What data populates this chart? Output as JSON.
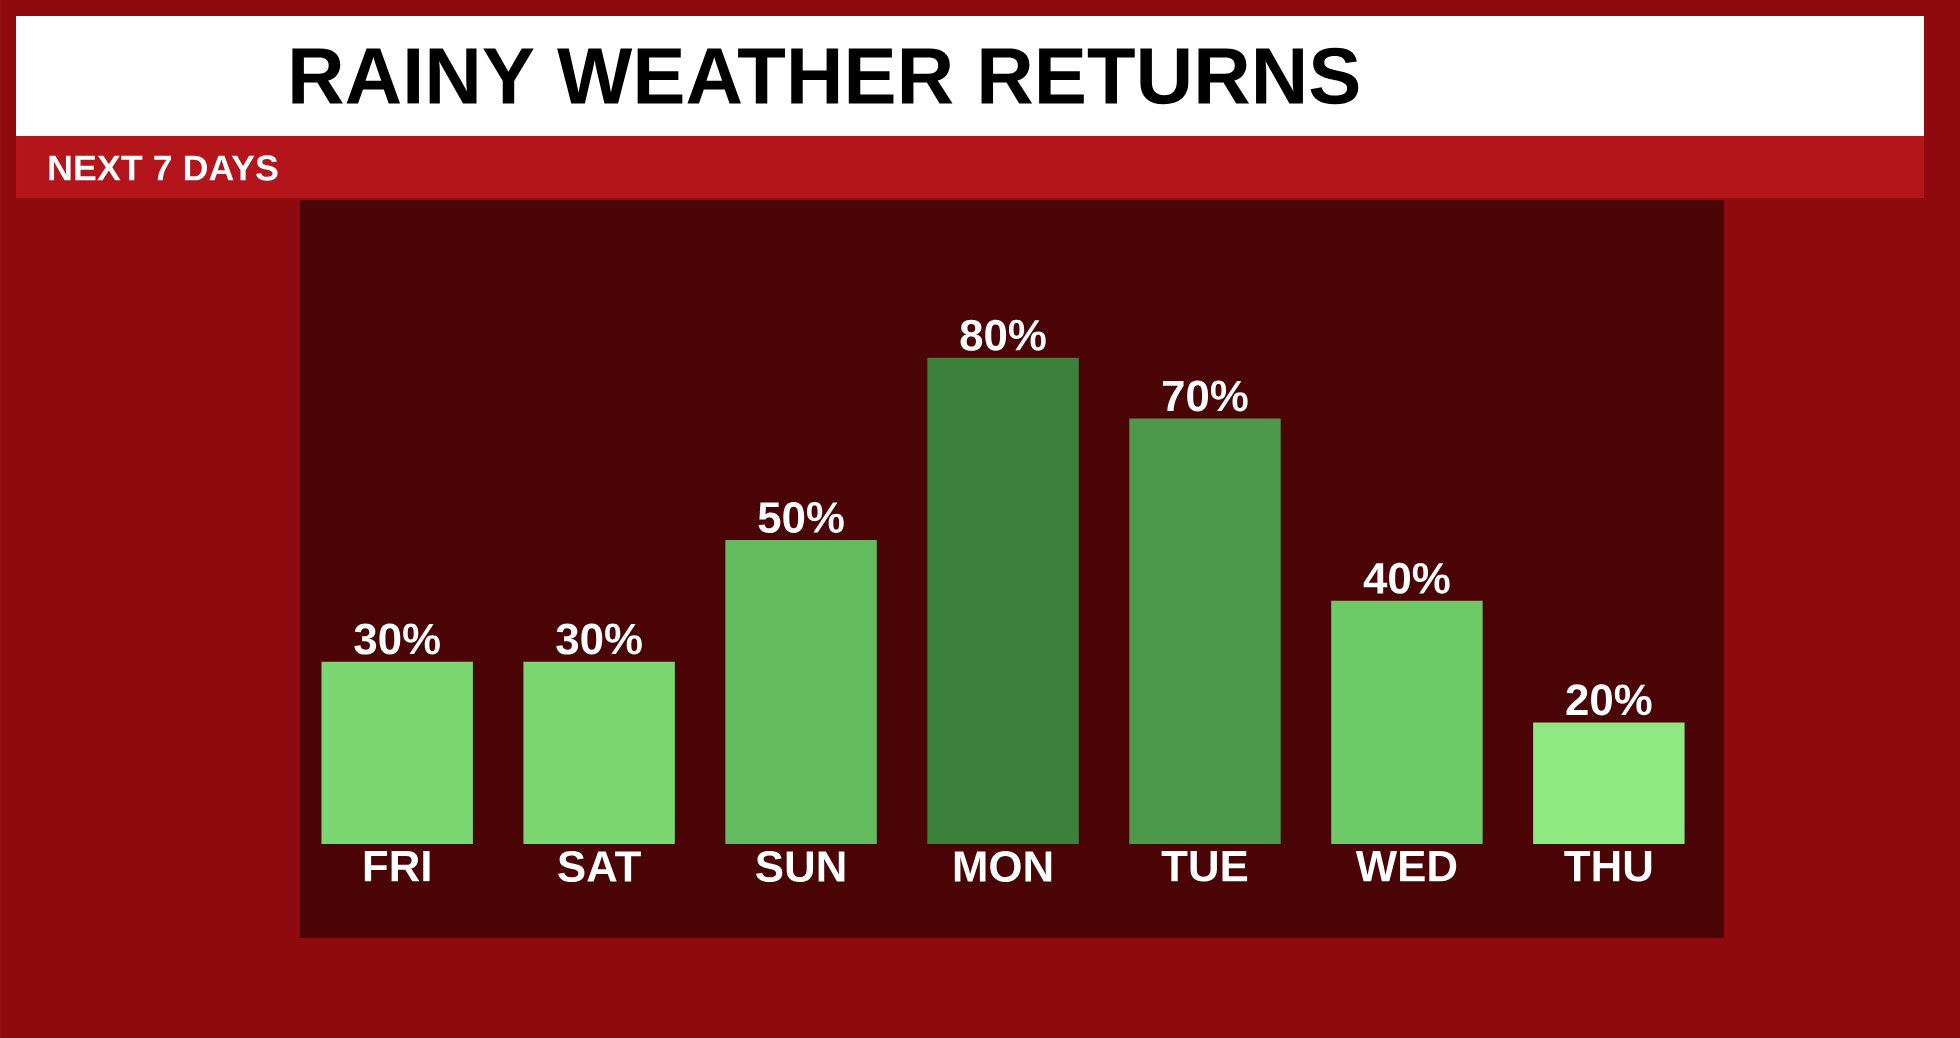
{
  "chart_data": {
    "type": "bar",
    "title": "RAINY WEATHER RETURNS",
    "subtitle": "NEXT 7 DAYS",
    "categories": [
      "FRI",
      "SAT",
      "SUN",
      "MON",
      "TUE",
      "WED",
      "THU"
    ],
    "values": [
      30,
      30,
      50,
      80,
      70,
      40,
      20
    ],
    "value_labels": [
      "30%",
      "30%",
      "50%",
      "80%",
      "70%",
      "40%",
      "20%"
    ],
    "colors": [
      "#7ad771",
      "#7ad771",
      "#63bb5d",
      "#3b803b",
      "#4c9a49",
      "#6ccb66",
      "#8eea80"
    ],
    "grid": false
  }
}
